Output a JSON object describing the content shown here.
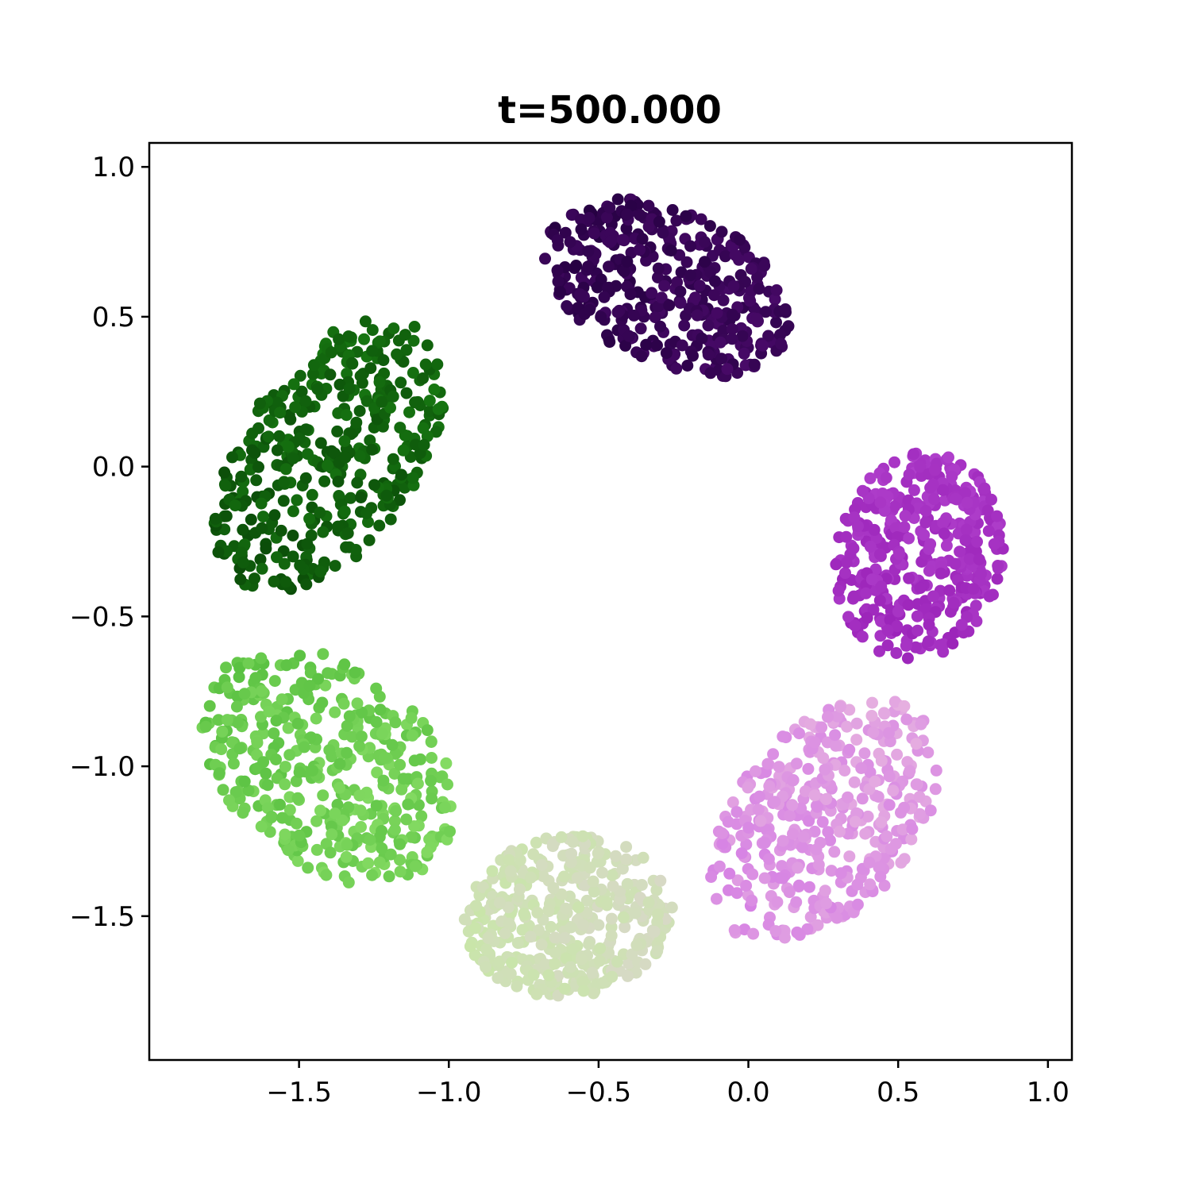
{
  "chart_data": {
    "type": "scatter",
    "title": "t=500.000",
    "xlabel": "",
    "ylabel": "",
    "xlim": [
      -2.0,
      1.08
    ],
    "ylim": [
      -1.98,
      1.08
    ],
    "grid": false,
    "x_ticks": [
      -1.5,
      -1.0,
      -0.5,
      0.0,
      0.5,
      1.0
    ],
    "x_tick_labels": [
      "−1.5",
      "−1.0",
      "−0.5",
      "0.0",
      "0.5",
      "1.0"
    ],
    "y_ticks": [
      1.0,
      0.5,
      0.0,
      -0.5,
      -1.0,
      -1.5
    ],
    "y_tick_labels": [
      "1.0",
      "0.5",
      "0.0",
      "−0.5",
      "−1.0",
      "−1.5"
    ],
    "point_count_per_cluster": 400,
    "clusters": [
      {
        "center": [
          -0.27,
          0.6
        ],
        "semi_axes": [
          0.44,
          0.26
        ],
        "angle_deg": -25,
        "color_start": "#240040",
        "color_end": "#4a0a6a"
      },
      {
        "center": [
          0.57,
          -0.3
        ],
        "semi_axes": [
          0.35,
          0.28
        ],
        "angle_deg": 78,
        "color_start": "#9a22b8",
        "color_end": "#b040cc"
      },
      {
        "center": [
          0.25,
          -1.18
        ],
        "semi_axes": [
          0.48,
          0.3
        ],
        "angle_deg": 48,
        "color_start": "#d57fe4",
        "color_end": "#e6b0e0"
      },
      {
        "center": [
          -0.6,
          -1.5
        ],
        "semi_axes": [
          0.35,
          0.27
        ],
        "angle_deg": 5,
        "color_start": "#c8e6a8",
        "color_end": "#d8d8c8"
      },
      {
        "center": [
          -1.4,
          -1.0
        ],
        "semi_axes": [
          0.48,
          0.33
        ],
        "angle_deg": -40,
        "color_start": "#58c040",
        "color_end": "#88dd66"
      },
      {
        "center": [
          -1.4,
          0.04
        ],
        "semi_axes": [
          0.52,
          0.3
        ],
        "angle_deg": 55,
        "color_start": "#0a4a08",
        "color_end": "#187a12"
      }
    ]
  }
}
